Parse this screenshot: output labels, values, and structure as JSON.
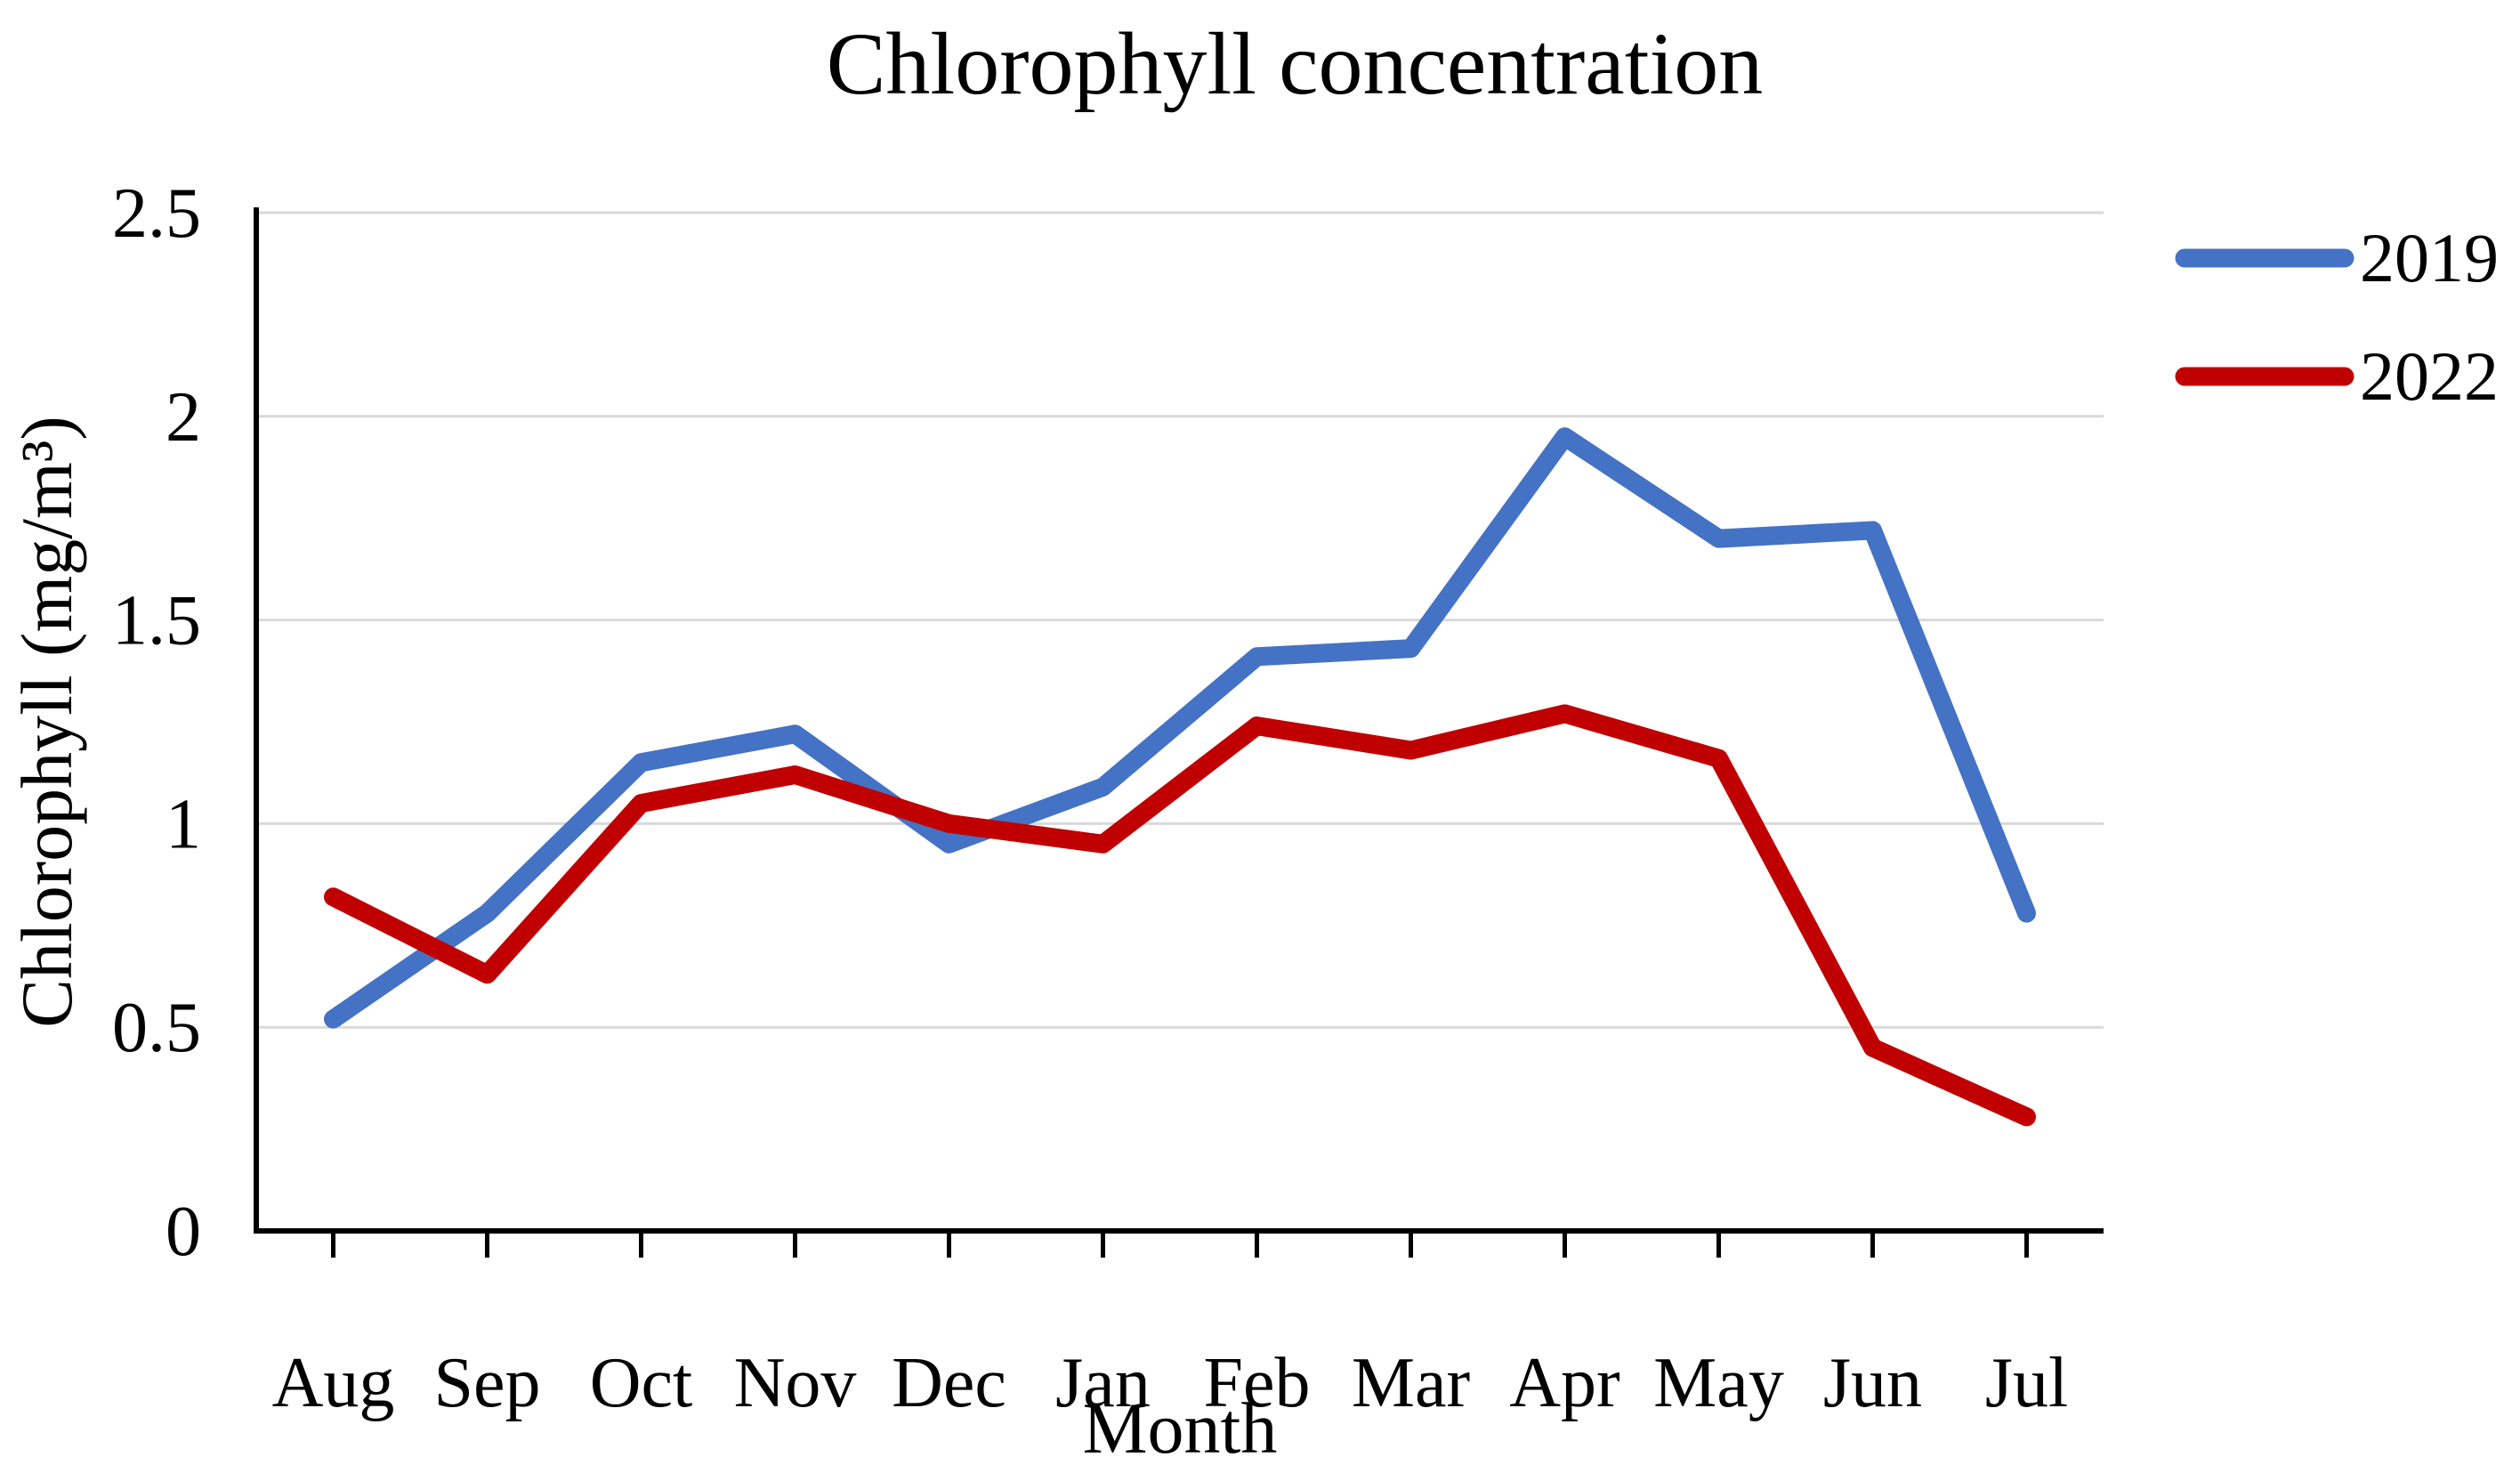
{
  "chart_data": {
    "type": "line",
    "title": "Chlorophyll concentration",
    "xlabel": "Month",
    "ylabel": "Chlorophyll (mg/m³)",
    "categories": [
      "Aug",
      "Sep",
      "Oct",
      "Nov",
      "Dec",
      "Jan",
      "Feb",
      "Mar",
      "Apr",
      "May",
      "Jun",
      "Jul"
    ],
    "series": [
      {
        "name": "2019",
        "color": "#4472C4",
        "values": [
          0.52,
          0.78,
          1.15,
          1.22,
          0.95,
          1.09,
          1.41,
          1.43,
          1.95,
          1.7,
          1.72,
          0.78
        ]
      },
      {
        "name": "2022",
        "color": "#C00000",
        "values": [
          0.82,
          0.63,
          1.05,
          1.12,
          1.0,
          0.95,
          1.24,
          1.18,
          1.27,
          1.16,
          0.45,
          0.28
        ]
      }
    ],
    "ylim": [
      0,
      2.5
    ],
    "ytick_step": 0.5,
    "ytick_labels": [
      "0",
      "0.5",
      "1",
      "1.5",
      "2",
      "2.5"
    ],
    "grid": "horizontal",
    "gridline_color": "#D9D9D9",
    "axis_color": "#000000",
    "legend_position": "right"
  }
}
